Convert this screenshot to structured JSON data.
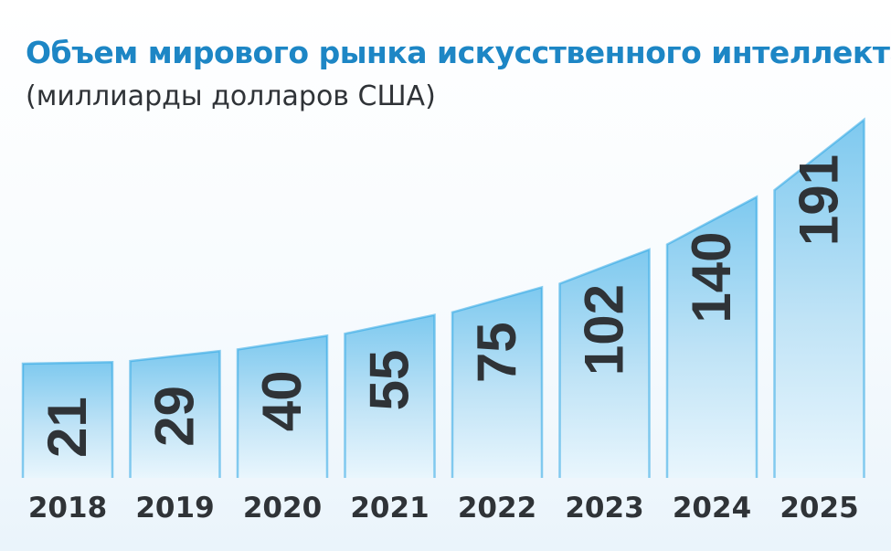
{
  "colors": {
    "title": "#1d86c5",
    "text": "#2f3337",
    "bar_top": "#7ec9ef",
    "bar_bottom": "#e9f6fd",
    "bar_edge": "#2ba5e3"
  },
  "chart_data": {
    "type": "bar",
    "title": "Объем мирового рынка искусственного интеллекта",
    "subtitle": "(миллиарды долларов США)",
    "categories": [
      "2018",
      "2019",
      "2020",
      "2021",
      "2022",
      "2023",
      "2024",
      "2025"
    ],
    "values": [
      21,
      29,
      40,
      55,
      75,
      102,
      140,
      191
    ],
    "value_labels": [
      "21",
      "29",
      "40",
      "55",
      "75",
      "102",
      "140",
      "191"
    ],
    "legend": "none",
    "grid": false
  }
}
